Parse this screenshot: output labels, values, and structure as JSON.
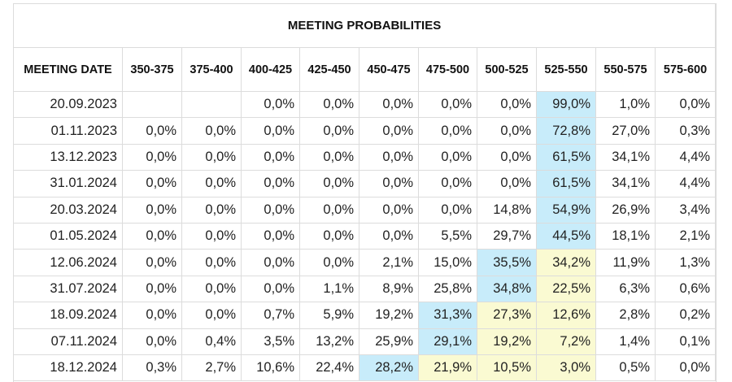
{
  "title": "MEETING PROBABILITIES",
  "headers": [
    "MEETING DATE",
    "350-375",
    "375-400",
    "400-425",
    "425-450",
    "450-475",
    "475-500",
    "500-525",
    "525-550",
    "550-575",
    "575-600"
  ],
  "colors": {
    "highlight_blue": "#c8ecfa",
    "highlight_yellow": "#fafad2",
    "border": "#dcdcdc"
  },
  "rows": [
    {
      "date": "20.09.2023",
      "values": [
        "",
        "",
        "0,0%",
        "0,0%",
        "0,0%",
        "0,0%",
        "0,0%",
        "99,0%",
        "1,0%",
        "0,0%"
      ],
      "highlight": {
        "7": "blue"
      }
    },
    {
      "date": "01.11.2023",
      "values": [
        "0,0%",
        "0,0%",
        "0,0%",
        "0,0%",
        "0,0%",
        "0,0%",
        "0,0%",
        "72,8%",
        "27,0%",
        "0,3%"
      ],
      "highlight": {
        "7": "blue"
      }
    },
    {
      "date": "13.12.2023",
      "values": [
        "0,0%",
        "0,0%",
        "0,0%",
        "0,0%",
        "0,0%",
        "0,0%",
        "0,0%",
        "61,5%",
        "34,1%",
        "4,4%"
      ],
      "highlight": {
        "7": "blue"
      }
    },
    {
      "date": "31.01.2024",
      "values": [
        "0,0%",
        "0,0%",
        "0,0%",
        "0,0%",
        "0,0%",
        "0,0%",
        "0,0%",
        "61,5%",
        "34,1%",
        "4,4%"
      ],
      "highlight": {
        "7": "blue"
      }
    },
    {
      "date": "20.03.2024",
      "values": [
        "0,0%",
        "0,0%",
        "0,0%",
        "0,0%",
        "0,0%",
        "0,0%",
        "14,8%",
        "54,9%",
        "26,9%",
        "3,4%"
      ],
      "highlight": {
        "7": "blue"
      }
    },
    {
      "date": "01.05.2024",
      "values": [
        "0,0%",
        "0,0%",
        "0,0%",
        "0,0%",
        "0,0%",
        "5,5%",
        "29,7%",
        "44,5%",
        "18,1%",
        "2,1%"
      ],
      "highlight": {
        "7": "blue"
      }
    },
    {
      "date": "12.06.2024",
      "values": [
        "0,0%",
        "0,0%",
        "0,0%",
        "0,0%",
        "2,1%",
        "15,0%",
        "35,5%",
        "34,2%",
        "11,9%",
        "1,3%"
      ],
      "highlight": {
        "6": "blue",
        "7": "yellow"
      }
    },
    {
      "date": "31.07.2024",
      "values": [
        "0,0%",
        "0,0%",
        "0,0%",
        "1,1%",
        "8,9%",
        "25,8%",
        "34,8%",
        "22,5%",
        "6,3%",
        "0,6%"
      ],
      "highlight": {
        "6": "blue",
        "7": "yellow"
      }
    },
    {
      "date": "18.09.2024",
      "values": [
        "0,0%",
        "0,0%",
        "0,7%",
        "5,9%",
        "19,2%",
        "31,3%",
        "27,3%",
        "12,6%",
        "2,8%",
        "0,2%"
      ],
      "highlight": {
        "5": "blue",
        "6": "yellow",
        "7": "yellow"
      }
    },
    {
      "date": "07.11.2024",
      "values": [
        "0,0%",
        "0,4%",
        "3,5%",
        "13,2%",
        "25,9%",
        "29,1%",
        "19,2%",
        "7,2%",
        "1,4%",
        "0,1%"
      ],
      "highlight": {
        "5": "blue",
        "6": "yellow",
        "7": "yellow"
      }
    },
    {
      "date": "18.12.2024",
      "values": [
        "0,3%",
        "2,7%",
        "10,6%",
        "22,4%",
        "28,2%",
        "21,9%",
        "10,5%",
        "3,0%",
        "0,5%",
        "0,0%"
      ],
      "highlight": {
        "4": "blue",
        "5": "yellow",
        "6": "yellow",
        "7": "yellow"
      }
    }
  ]
}
